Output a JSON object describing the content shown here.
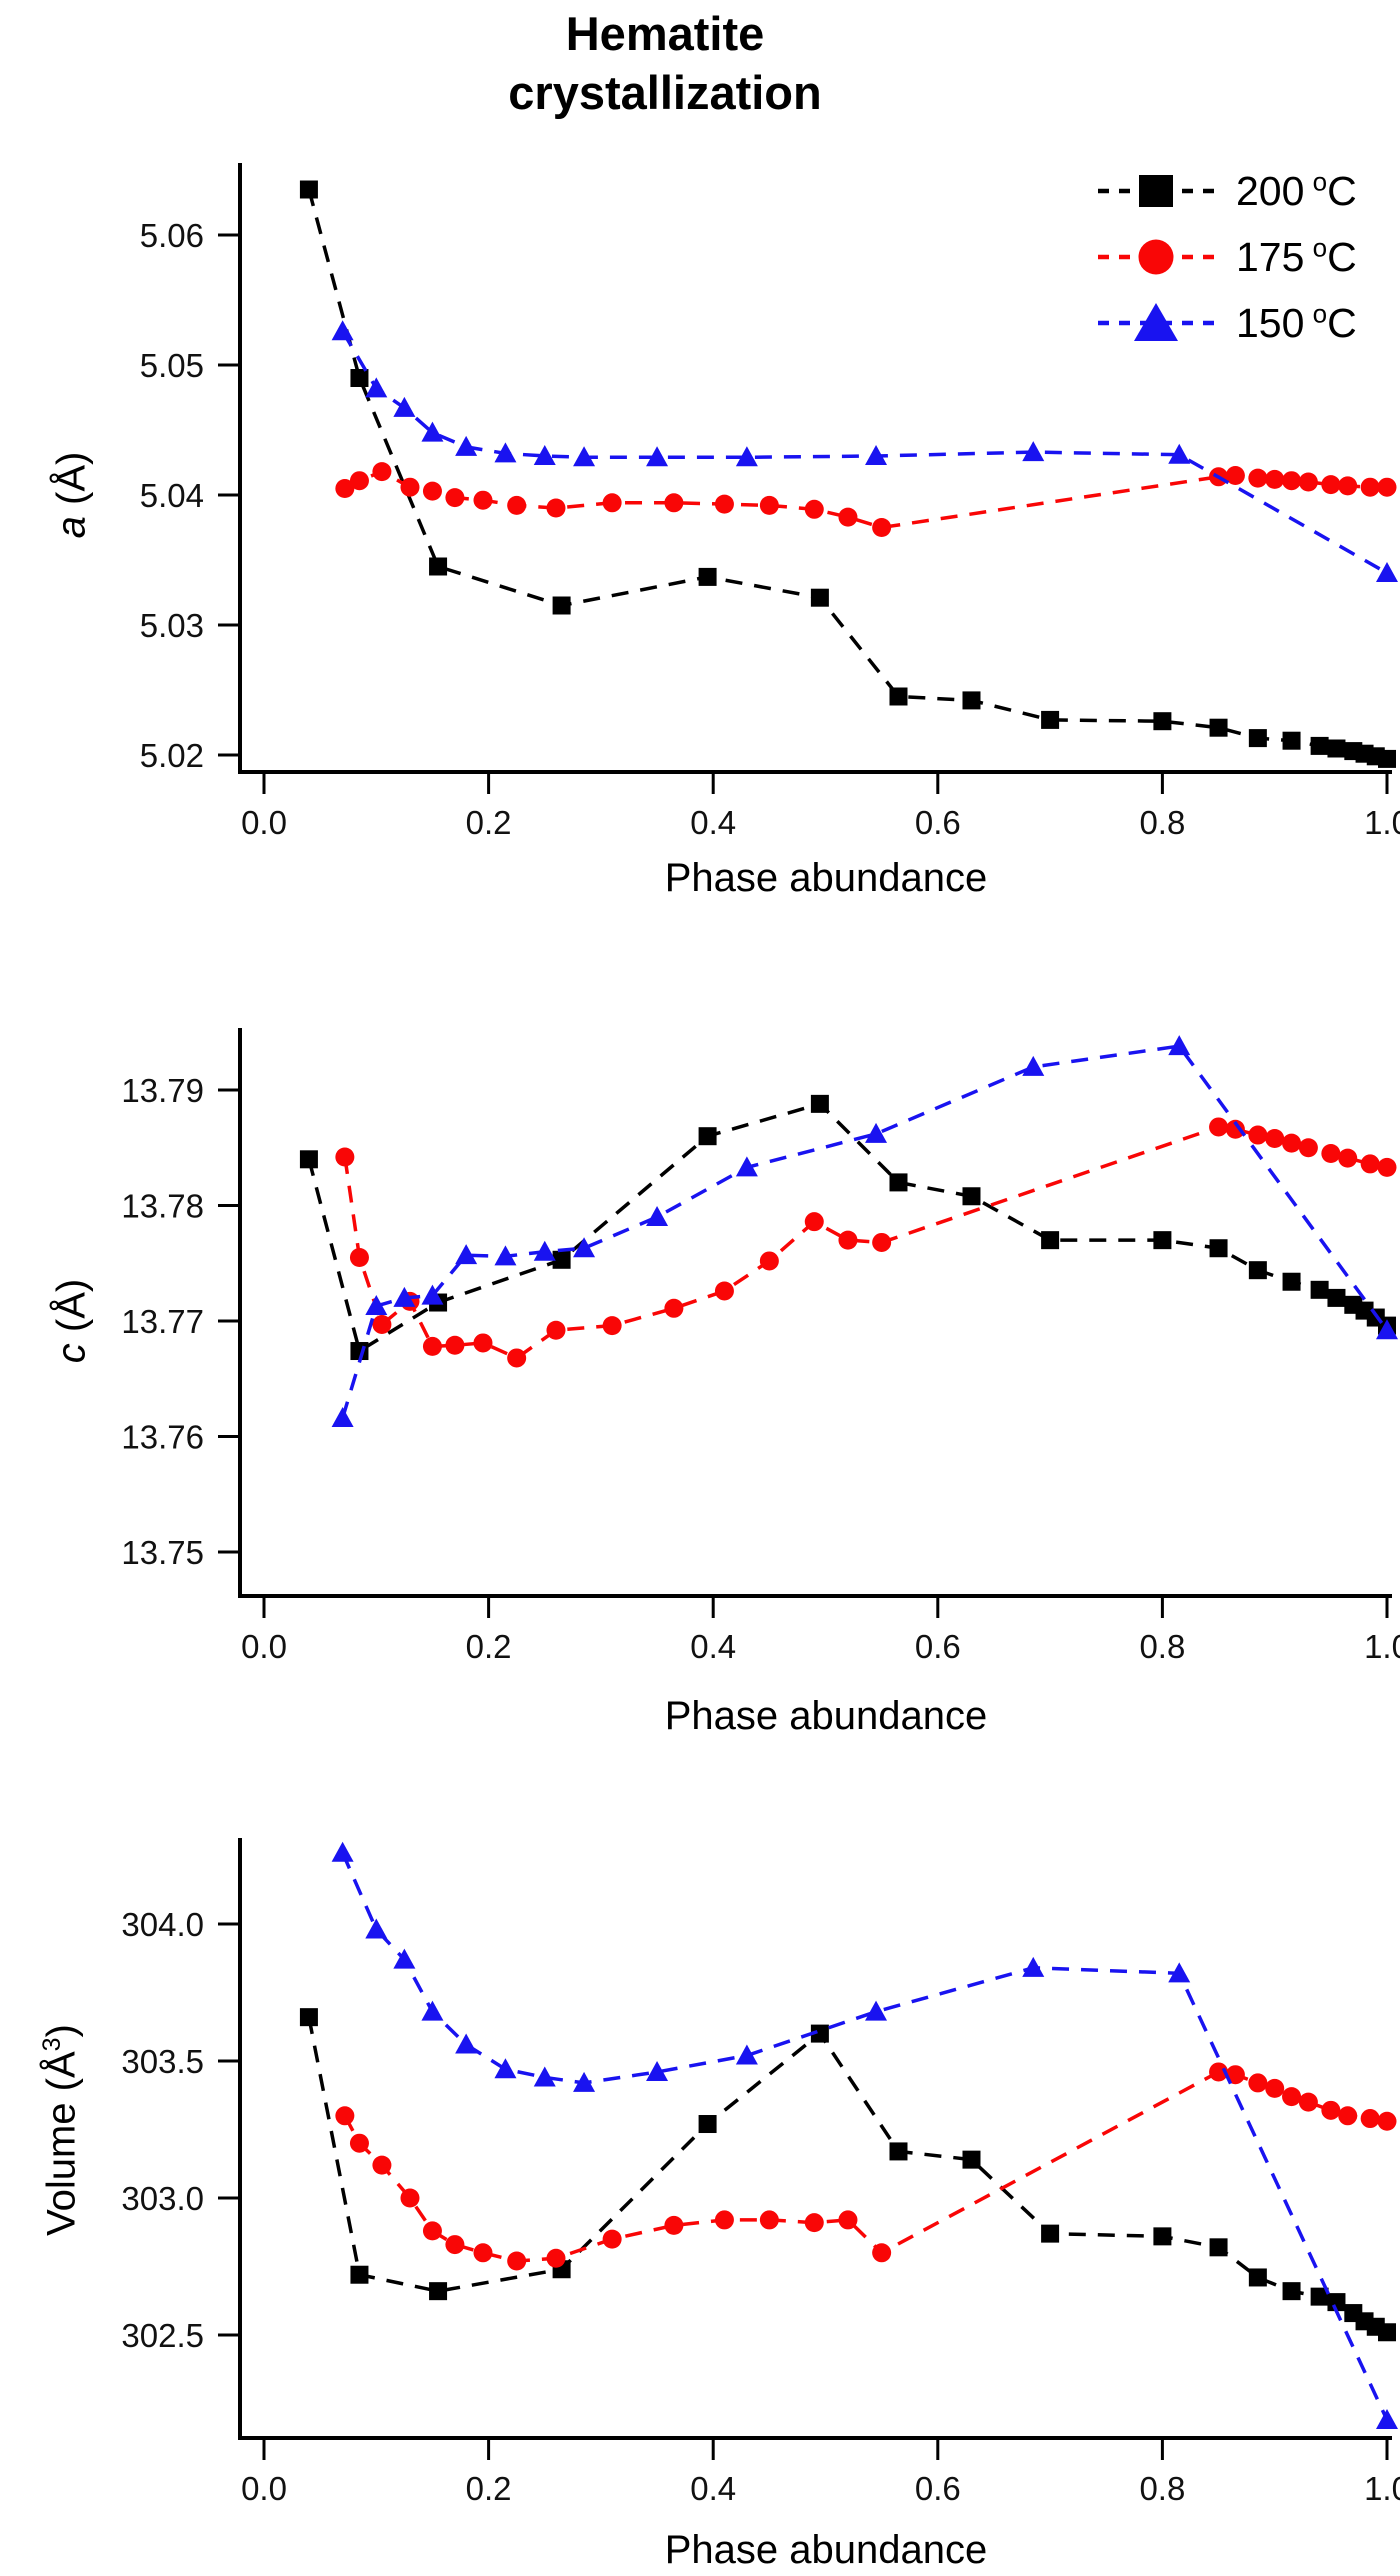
{
  "title": {
    "line1": "Hematite",
    "line2": "crystallization"
  },
  "colors": {
    "black": "#000000",
    "red": "#f90606",
    "blue": "#1913f0"
  },
  "legend": {
    "items": [
      {
        "value": "200",
        "deg": "o",
        "unit": "C",
        "marker": "square",
        "color_key": "black"
      },
      {
        "value": "175",
        "deg": "o",
        "unit": "C",
        "marker": "circle",
        "color_key": "red"
      },
      {
        "value": "150",
        "deg": "o",
        "unit": "C",
        "marker": "triangle",
        "color_key": "blue"
      }
    ]
  },
  "chart_data": [
    {
      "id": "a",
      "type": "line",
      "xlabel": "Phase abundance",
      "ylabel_segments": [
        {
          "t": "a",
          "italic": true
        },
        {
          "t": " (Å)"
        }
      ],
      "xlim": [
        0.0,
        1.0
      ],
      "ylim": [
        5.0187,
        5.0654
      ],
      "grid": false,
      "legend_position": "top-right",
      "xticks": [
        {
          "v": 0.0,
          "label": "0.0"
        },
        {
          "v": 0.2,
          "label": "0.2"
        },
        {
          "v": 0.4,
          "label": "0.4"
        },
        {
          "v": 0.6,
          "label": "0.6"
        },
        {
          "v": 0.8,
          "label": "0.8"
        },
        {
          "v": 1.0,
          "label": "1.0"
        }
      ],
      "yticks": [
        {
          "v": 5.02,
          "label": "5.02"
        },
        {
          "v": 5.03,
          "label": "5.03"
        },
        {
          "v": 5.04,
          "label": "5.04"
        },
        {
          "v": 5.05,
          "label": "5.05"
        },
        {
          "v": 5.06,
          "label": "5.06"
        }
      ],
      "series": [
        {
          "name": "200 C",
          "color_key": "black",
          "marker": "square",
          "x": [
            0.04,
            0.085,
            0.155,
            0.265,
            0.395,
            0.495,
            0.565,
            0.63,
            0.7,
            0.8,
            0.85,
            0.885,
            0.915,
            0.94,
            0.955,
            0.97,
            0.98,
            0.99,
            1.0
          ],
          "y": [
            5.0635,
            5.049,
            5.0345,
            5.0315,
            5.0337,
            5.0321,
            5.0245,
            5.0242,
            5.0227,
            5.0226,
            5.0221,
            5.0213,
            5.0211,
            5.0207,
            5.0205,
            5.0203,
            5.0201,
            5.0199,
            5.0197
          ]
        },
        {
          "name": "175 C",
          "color_key": "red",
          "marker": "circle",
          "x": [
            0.072,
            0.085,
            0.105,
            0.13,
            0.15,
            0.17,
            0.195,
            0.225,
            0.26,
            0.31,
            0.365,
            0.41,
            0.45,
            0.49,
            0.52,
            0.55,
            0.85,
            0.865,
            0.885,
            0.9,
            0.915,
            0.93,
            0.95,
            0.965,
            0.985,
            1.0
          ],
          "y": [
            5.0405,
            5.0411,
            5.0418,
            5.0406,
            5.0403,
            5.0398,
            5.0396,
            5.0392,
            5.039,
            5.0394,
            5.0394,
            5.0393,
            5.0392,
            5.0389,
            5.0383,
            5.0375,
            5.0414,
            5.0415,
            5.0413,
            5.0412,
            5.0411,
            5.041,
            5.0408,
            5.0407,
            5.0406,
            5.0406
          ]
        },
        {
          "name": "150 C",
          "color_key": "blue",
          "marker": "triangle",
          "x": [
            0.07,
            0.1,
            0.125,
            0.15,
            0.18,
            0.215,
            0.25,
            0.285,
            0.35,
            0.43,
            0.545,
            0.685,
            0.815,
            1.0
          ],
          "y": [
            5.0526,
            5.0482,
            5.0467,
            5.0448,
            5.0437,
            5.0432,
            5.043,
            5.0429,
            5.0429,
            5.0429,
            5.043,
            5.0433,
            5.0431,
            5.034
          ]
        }
      ]
    },
    {
      "id": "c",
      "type": "line",
      "xlabel": "Phase abundance",
      "ylabel_segments": [
        {
          "t": "c",
          "italic": true
        },
        {
          "t": " (Å)"
        }
      ],
      "xlim": [
        0.0,
        1.0
      ],
      "ylim": [
        13.7462,
        13.7952
      ],
      "grid": false,
      "xticks": [
        {
          "v": 0.0,
          "label": "0.0"
        },
        {
          "v": 0.2,
          "label": "0.2"
        },
        {
          "v": 0.4,
          "label": "0.4"
        },
        {
          "v": 0.6,
          "label": "0.6"
        },
        {
          "v": 0.8,
          "label": "0.8"
        },
        {
          "v": 1.0,
          "label": "1.0"
        }
      ],
      "yticks": [
        {
          "v": 13.75,
          "label": "13.75"
        },
        {
          "v": 13.76,
          "label": "13.76"
        },
        {
          "v": 13.77,
          "label": "13.77"
        },
        {
          "v": 13.78,
          "label": "13.78"
        },
        {
          "v": 13.79,
          "label": "13.79"
        }
      ],
      "series": [
        {
          "name": "200 C",
          "color_key": "black",
          "marker": "square",
          "x": [
            0.04,
            0.085,
            0.155,
            0.265,
            0.395,
            0.495,
            0.565,
            0.63,
            0.7,
            0.8,
            0.85,
            0.885,
            0.915,
            0.94,
            0.955,
            0.97,
            0.98,
            0.99,
            1.0
          ],
          "y": [
            13.784,
            13.7674,
            13.7716,
            13.7753,
            13.786,
            13.7888,
            13.782,
            13.7808,
            13.777,
            13.777,
            13.7763,
            13.7744,
            13.7734,
            13.7727,
            13.772,
            13.7714,
            13.7709,
            13.7703,
            13.7696
          ]
        },
        {
          "name": "175 C",
          "color_key": "red",
          "marker": "circle",
          "x": [
            0.072,
            0.085,
            0.105,
            0.13,
            0.15,
            0.17,
            0.195,
            0.225,
            0.26,
            0.31,
            0.365,
            0.41,
            0.45,
            0.49,
            0.52,
            0.55,
            0.85,
            0.865,
            0.885,
            0.9,
            0.915,
            0.93,
            0.95,
            0.965,
            0.985,
            1.0
          ],
          "y": [
            13.7842,
            13.7755,
            13.7697,
            13.7717,
            13.7678,
            13.7679,
            13.7681,
            13.7668,
            13.7692,
            13.7696,
            13.7711,
            13.7726,
            13.7752,
            13.7786,
            13.777,
            13.7768,
            13.7868,
            13.7866,
            13.7861,
            13.7858,
            13.7854,
            13.785,
            13.7845,
            13.7841,
            13.7836,
            13.7833
          ]
        },
        {
          "name": "150 C",
          "color_key": "blue",
          "marker": "triangle",
          "x": [
            0.07,
            0.1,
            0.125,
            0.15,
            0.18,
            0.215,
            0.25,
            0.285,
            0.35,
            0.43,
            0.545,
            0.685,
            0.815,
            1.0
          ],
          "y": [
            13.7616,
            13.7713,
            13.772,
            13.7722,
            13.7757,
            13.7756,
            13.776,
            13.7763,
            13.779,
            13.7833,
            13.7862,
            13.792,
            13.7938,
            13.7692
          ]
        }
      ]
    },
    {
      "id": "volume",
      "type": "line",
      "xlabel": "Phase abundance",
      "ylabel_segments": [
        {
          "t": "Volume (Å"
        },
        {
          "t": "3",
          "sup": true
        },
        {
          "t": ")"
        }
      ],
      "xlim": [
        0.0,
        1.0
      ],
      "ylim": [
        302.12,
        304.31
      ],
      "grid": false,
      "xticks": [
        {
          "v": 0.0,
          "label": "0.0"
        },
        {
          "v": 0.2,
          "label": "0.2"
        },
        {
          "v": 0.4,
          "label": "0.4"
        },
        {
          "v": 0.6,
          "label": "0.6"
        },
        {
          "v": 0.8,
          "label": "0.8"
        },
        {
          "v": 1.0,
          "label": "1.0"
        }
      ],
      "yticks": [
        {
          "v": 302.5,
          "label": "302.5"
        },
        {
          "v": 303.0,
          "label": "303.0"
        },
        {
          "v": 303.5,
          "label": "303.5"
        },
        {
          "v": 304.0,
          "label": "304.0"
        }
      ],
      "series": [
        {
          "name": "200 C",
          "color_key": "black",
          "marker": "square",
          "x": [
            0.04,
            0.085,
            0.155,
            0.265,
            0.395,
            0.495,
            0.565,
            0.63,
            0.7,
            0.8,
            0.85,
            0.885,
            0.915,
            0.94,
            0.955,
            0.97,
            0.98,
            0.99,
            1.0
          ],
          "y": [
            303.66,
            302.72,
            302.66,
            302.74,
            303.27,
            303.6,
            303.17,
            303.14,
            302.87,
            302.86,
            302.82,
            302.71,
            302.66,
            302.64,
            302.62,
            302.58,
            302.55,
            302.53,
            302.51
          ]
        },
        {
          "name": "175 C",
          "color_key": "red",
          "marker": "circle",
          "x": [
            0.072,
            0.085,
            0.105,
            0.13,
            0.15,
            0.17,
            0.195,
            0.225,
            0.26,
            0.31,
            0.365,
            0.41,
            0.45,
            0.49,
            0.52,
            0.55,
            0.85,
            0.865,
            0.885,
            0.9,
            0.915,
            0.93,
            0.95,
            0.965,
            0.985,
            1.0
          ],
          "y": [
            303.3,
            303.2,
            303.12,
            303.0,
            302.88,
            302.83,
            302.8,
            302.77,
            302.78,
            302.85,
            302.9,
            302.92,
            302.92,
            302.91,
            302.92,
            302.8,
            303.46,
            303.45,
            303.42,
            303.4,
            303.37,
            303.35,
            303.32,
            303.3,
            303.29,
            303.28
          ]
        },
        {
          "name": "150 C",
          "color_key": "blue",
          "marker": "triangle",
          "x": [
            0.07,
            0.1,
            0.125,
            0.15,
            0.18,
            0.215,
            0.25,
            0.285,
            0.35,
            0.43,
            0.545,
            0.685,
            0.815,
            1.0
          ],
          "y": [
            304.26,
            303.98,
            303.87,
            303.68,
            303.56,
            303.47,
            303.44,
            303.42,
            303.46,
            303.52,
            303.68,
            303.84,
            303.82,
            302.19
          ]
        }
      ]
    }
  ]
}
